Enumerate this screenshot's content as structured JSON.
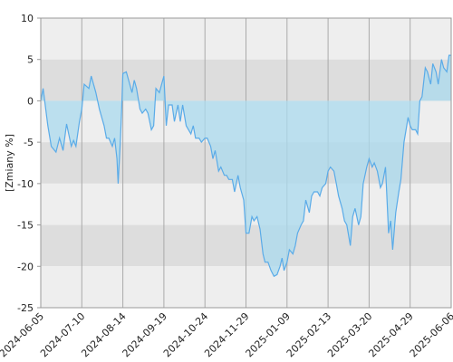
{
  "chart_data": {
    "type": "area",
    "ylabel": "[Zmiany %]",
    "line_color": "#5aabe8",
    "fill_color": "#a9d9ee",
    "band_colors": [
      "#eeeeee",
      "#dddddd"
    ],
    "grid": true,
    "ylim": [
      -25,
      10
    ],
    "yticks": [
      10,
      5,
      0,
      -5,
      -10,
      -15,
      -20,
      -25
    ],
    "xticks": [
      "2024-06-05",
      "2024-07-10",
      "2024-08-14",
      "2024-09-19",
      "2024-10-24",
      "2024-11-29",
      "2025-01-09",
      "2025-02-13",
      "2025-03-20",
      "2025-04-29",
      "2025-06-06"
    ],
    "x": [
      "2024-06-05",
      "2024-06-07",
      "2024-06-11",
      "2024-06-14",
      "2024-06-18",
      "2024-06-21",
      "2024-06-24",
      "2024-06-27",
      "2024-07-01",
      "2024-07-03",
      "2024-07-05",
      "2024-07-08",
      "2024-07-10",
      "2024-07-12",
      "2024-07-16",
      "2024-07-18",
      "2024-07-22",
      "2024-07-25",
      "2024-07-29",
      "2024-07-31",
      "2024-08-02",
      "2024-08-05",
      "2024-08-07",
      "2024-08-09",
      "2024-08-10",
      "2024-08-12",
      "2024-08-13",
      "2024-08-14",
      "2024-08-17",
      "2024-08-20",
      "2024-08-22",
      "2024-08-24",
      "2024-08-26",
      "2024-08-29",
      "2024-08-31",
      "2024-09-03",
      "2024-09-05",
      "2024-09-08",
      "2024-09-10",
      "2024-09-12",
      "2024-09-15",
      "2024-09-17",
      "2024-09-19",
      "2024-09-21",
      "2024-09-23",
      "2024-09-26",
      "2024-09-28",
      "2024-10-01",
      "2024-10-03",
      "2024-10-05",
      "2024-10-08",
      "2024-10-10",
      "2024-10-12",
      "2024-10-14",
      "2024-10-16",
      "2024-10-19",
      "2024-10-21",
      "2024-10-24",
      "2024-10-26",
      "2024-10-29",
      "2024-10-31",
      "2024-11-02",
      "2024-11-05",
      "2024-11-07",
      "2024-11-10",
      "2024-11-12",
      "2024-11-14",
      "2024-11-17",
      "2024-11-19",
      "2024-11-22",
      "2024-11-24",
      "2024-11-27",
      "2024-11-29",
      "2024-12-02",
      "2024-12-05",
      "2024-12-07",
      "2024-12-10",
      "2024-12-13",
      "2024-12-16",
      "2024-12-18",
      "2024-12-21",
      "2024-12-24",
      "2024-12-27",
      "2024-12-30",
      "2025-01-02",
      "2025-01-04",
      "2025-01-06",
      "2025-01-09",
      "2025-01-11",
      "2025-01-14",
      "2025-01-16",
      "2025-01-18",
      "2025-01-21",
      "2025-01-23",
      "2025-01-25",
      "2025-01-28",
      "2025-01-30",
      "2025-02-01",
      "2025-02-04",
      "2025-02-06",
      "2025-02-08",
      "2025-02-11",
      "2025-02-13",
      "2025-02-15",
      "2025-02-18",
      "2025-02-20",
      "2025-02-22",
      "2025-02-25",
      "2025-02-27",
      "2025-03-01",
      "2025-03-04",
      "2025-03-06",
      "2025-03-08",
      "2025-03-11",
      "2025-03-13",
      "2025-03-15",
      "2025-03-18",
      "2025-03-20",
      "2025-03-23",
      "2025-03-25",
      "2025-03-28",
      "2025-03-31",
      "2025-04-02",
      "2025-04-05",
      "2025-04-08",
      "2025-04-10",
      "2025-04-12",
      "2025-04-15",
      "2025-04-18",
      "2025-04-20",
      "2025-04-23",
      "2025-04-25",
      "2025-04-27",
      "2025-04-29",
      "2025-05-01",
      "2025-05-04",
      "2025-05-06",
      "2025-05-08",
      "2025-05-10",
      "2025-05-13",
      "2025-05-15",
      "2025-05-18",
      "2025-05-20",
      "2025-05-23",
      "2025-05-25",
      "2025-05-28",
      "2025-05-30",
      "2025-06-02",
      "2025-06-04",
      "2025-06-06"
    ],
    "values": [
      0,
      1.5,
      -3,
      -5.5,
      -6.2,
      -4.5,
      -6,
      -2.8,
      -5.5,
      -4.8,
      -5.5,
      -2.5,
      -1,
      2,
      1.5,
      3,
      1,
      -1,
      -3,
      -4.5,
      -4.5,
      -5.5,
      -4.5,
      -7,
      -10,
      -4.5,
      -1,
      3.3,
      3.5,
      2,
      1,
      2.5,
      1.5,
      -1,
      -1.5,
      -1,
      -1.5,
      -3.5,
      -3,
      1.5,
      1,
      2,
      3,
      -3,
      -0.5,
      -0.5,
      -2.5,
      -0.5,
      -2.5,
      -0.5,
      -3,
      -3.5,
      -4,
      -3,
      -4.5,
      -4.5,
      -5,
      -4.5,
      -4.5,
      -5.5,
      -7,
      -6,
      -8.5,
      -8,
      -9,
      -9,
      -9.5,
      -9.5,
      -11,
      -9,
      -10.5,
      -12,
      -16,
      -16,
      -14,
      -14.5,
      -14,
      -15.5,
      -18.5,
      -19.5,
      -19.5,
      -20.5,
      -21.2,
      -21,
      -20,
      -19,
      -20.5,
      -19.5,
      -18,
      -18.5,
      -17.5,
      -16,
      -15,
      -14.5,
      -12,
      -13.5,
      -11.5,
      -11,
      -11,
      -11.5,
      -10.5,
      -10,
      -8.5,
      -8,
      -8.5,
      -10,
      -11.5,
      -13,
      -14.5,
      -15,
      -17.5,
      -14,
      -13,
      -15,
      -14,
      -10,
      -8,
      -7,
      -8,
      -7.5,
      -8.5,
      -10.5,
      -10,
      -8,
      -16,
      -14.5,
      -18,
      -13.5,
      -11,
      -9.5,
      -5,
      -3.5,
      -2,
      -3,
      -3.5,
      -3.5,
      -4,
      0,
      0.5,
      4,
      3.5,
      2,
      4.5,
      3.5,
      2,
      5,
      4,
      3.5,
      5.5,
      5.5
    ]
  }
}
